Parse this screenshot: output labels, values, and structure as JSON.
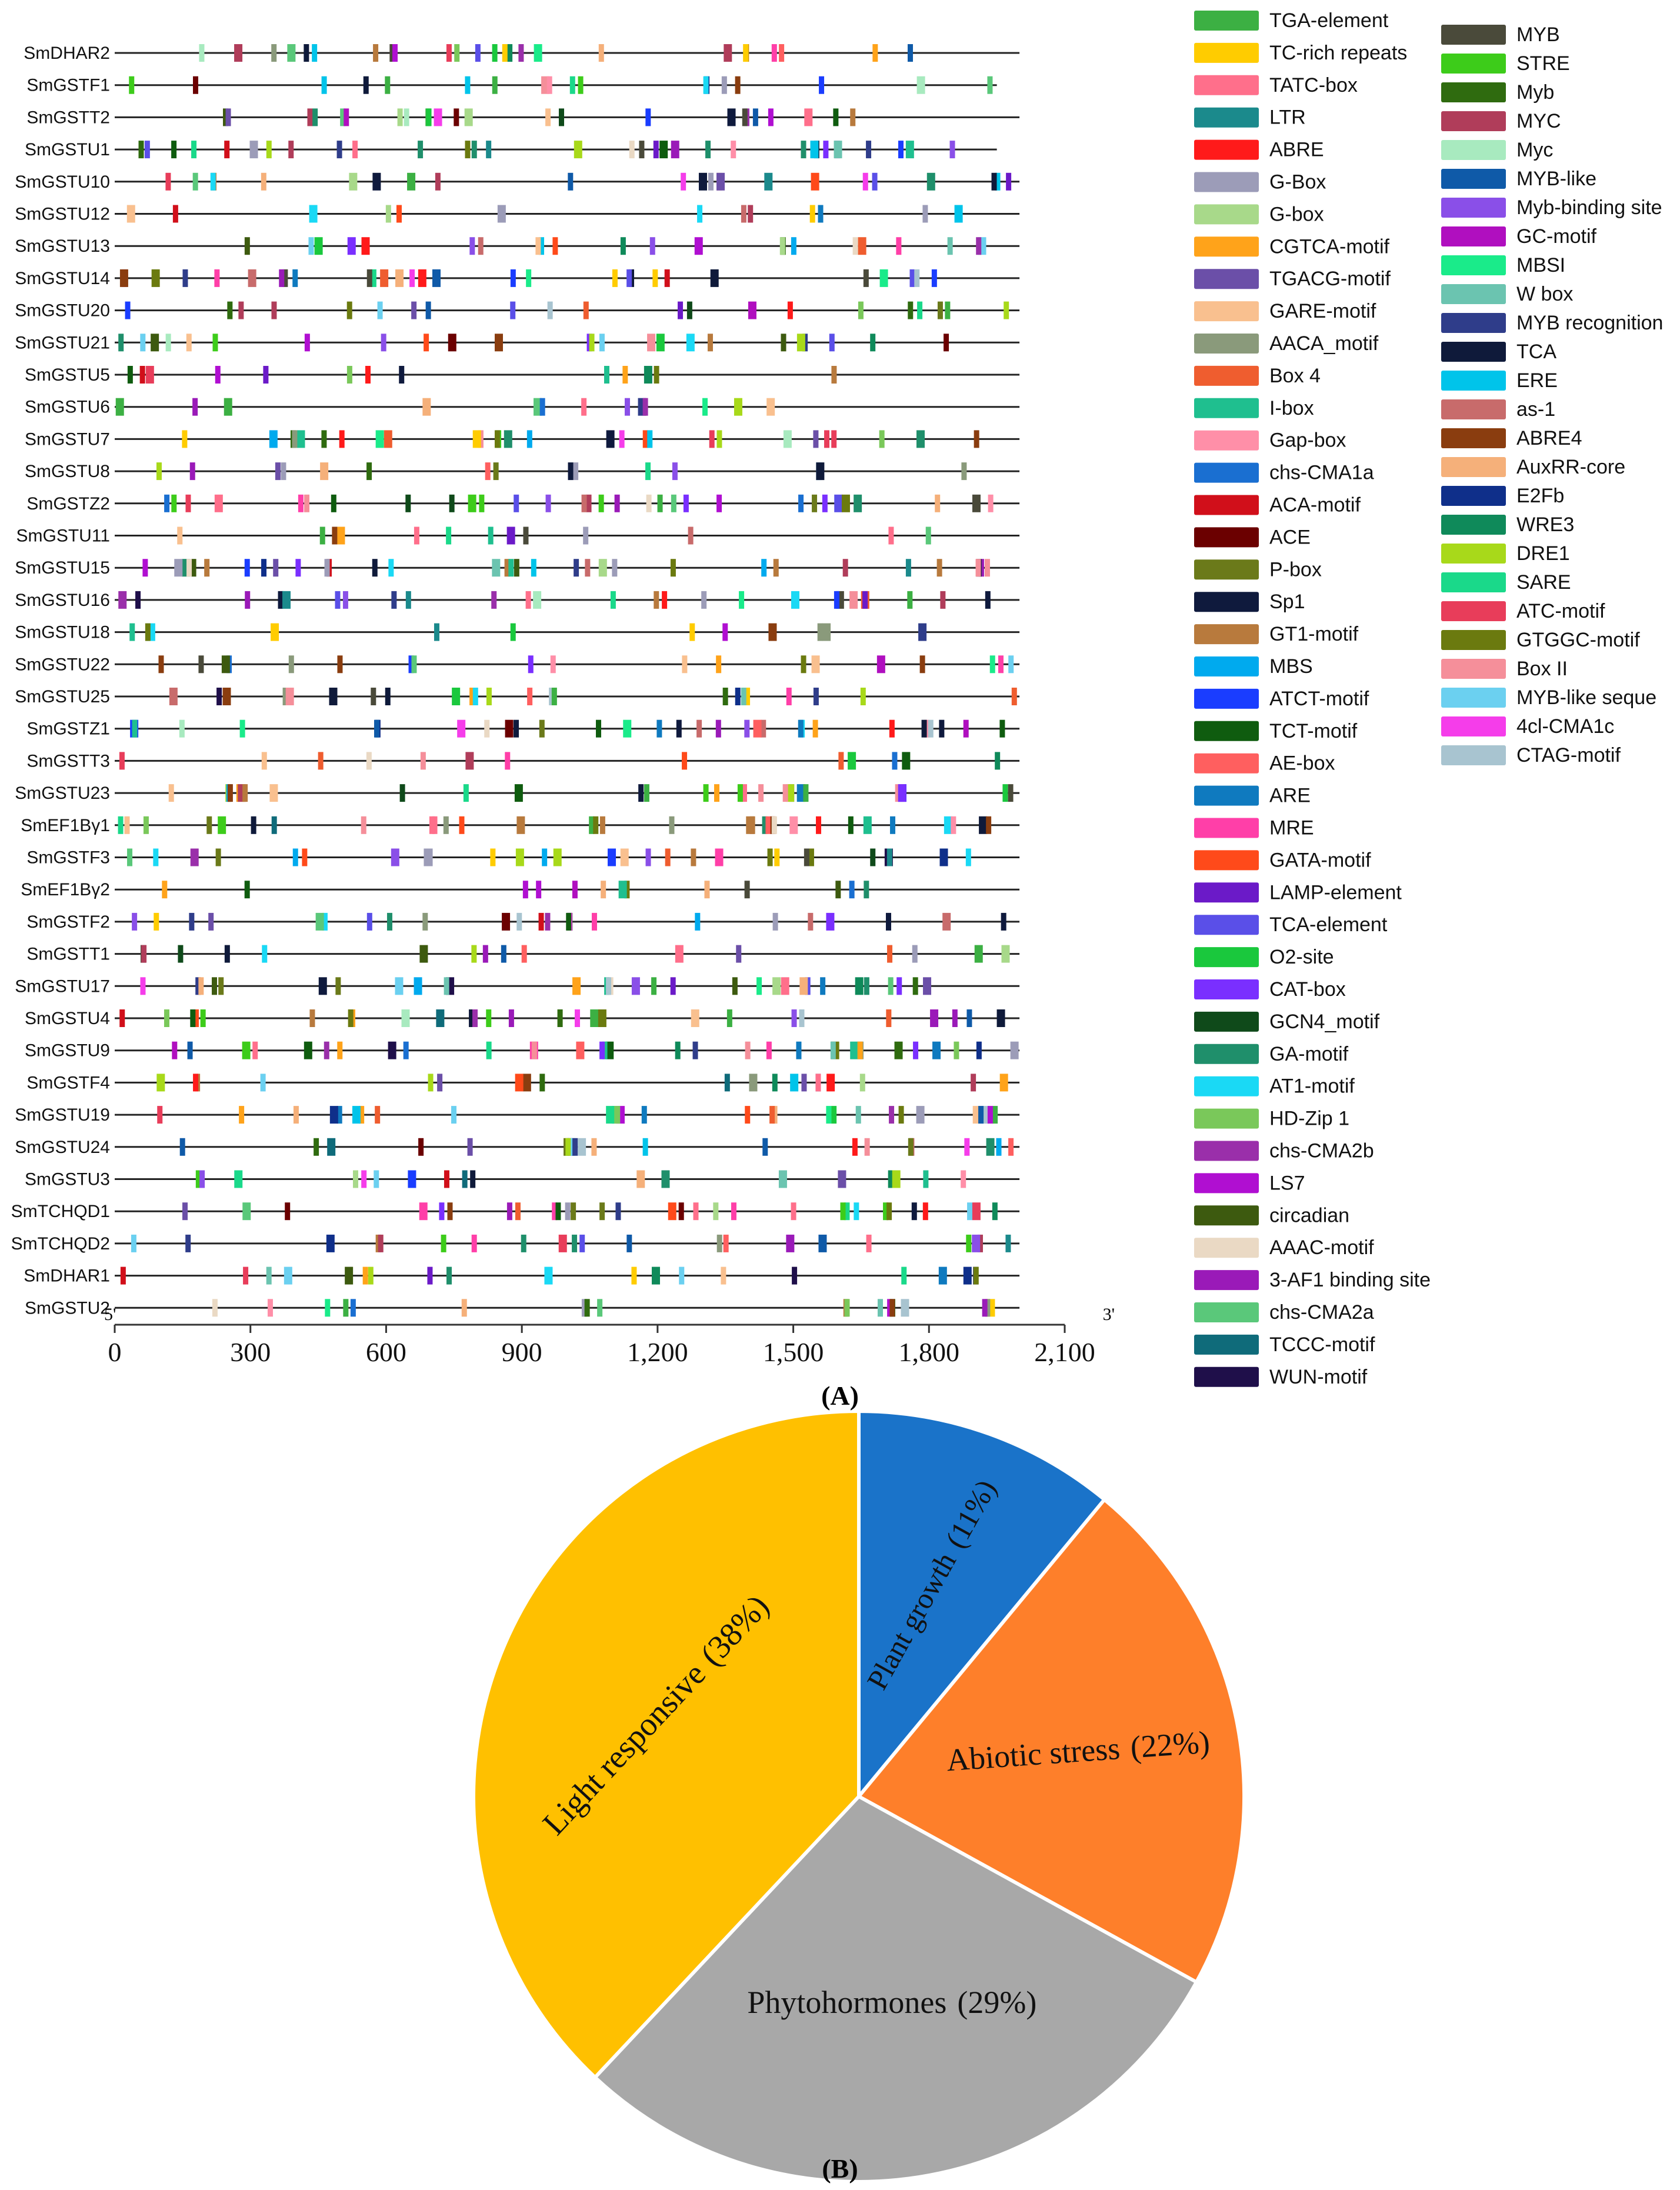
{
  "colors": {
    "line": "#222222",
    "axis": "#333333",
    "pie_edge": "#ffffff"
  },
  "chart_data": [
    {
      "type": "cis-element-map",
      "panel_label": "(A)",
      "axis_start_label": "5'",
      "axis_end_label": "3'",
      "xlim": [
        0,
        2100
      ],
      "xticks": [
        {
          "value": 0,
          "label": "0"
        },
        {
          "value": 300,
          "label": "300"
        },
        {
          "value": 600,
          "label": "600"
        },
        {
          "value": 900,
          "label": "900"
        },
        {
          "value": 1200,
          "label": "1,200"
        },
        {
          "value": 1500,
          "label": "1,500"
        },
        {
          "value": 1800,
          "label": "1,800"
        },
        {
          "value": 2100,
          "label": "2,100"
        }
      ],
      "genes": [
        {
          "name": "SmDHAR2",
          "length": 2000
        },
        {
          "name": "SmGSTF1",
          "length": 1950
        },
        {
          "name": "SmGSTT2",
          "length": 2000
        },
        {
          "name": "SmGSTU1",
          "length": 1950
        },
        {
          "name": "SmGSTU10",
          "length": 2000
        },
        {
          "name": "SmGSTU12",
          "length": 2000
        },
        {
          "name": "SmGSTU13",
          "length": 2000
        },
        {
          "name": "SmGSTU14",
          "length": 2000
        },
        {
          "name": "SmGSTU20",
          "length": 2000
        },
        {
          "name": "SmGSTU21",
          "length": 2000
        },
        {
          "name": "SmGSTU5",
          "length": 2000
        },
        {
          "name": "SmGSTU6",
          "length": 2000
        },
        {
          "name": "SmGSTU7",
          "length": 2000
        },
        {
          "name": "SmGSTU8",
          "length": 2000
        },
        {
          "name": "SmGSTZ2",
          "length": 2000
        },
        {
          "name": "SmGSTU11",
          "length": 2000
        },
        {
          "name": "SmGSTU15",
          "length": 2000
        },
        {
          "name": "SmGSTU16",
          "length": 2000
        },
        {
          "name": "SmGSTU18",
          "length": 2000
        },
        {
          "name": "SmGSTU22",
          "length": 2000
        },
        {
          "name": "SmGSTU25",
          "length": 2000
        },
        {
          "name": "SmGSTZ1",
          "length": 2000
        },
        {
          "name": "SmGSTT3",
          "length": 2000
        },
        {
          "name": "SmGSTU23",
          "length": 2000
        },
        {
          "name": "SmEF1Bγ1",
          "length": 2000
        },
        {
          "name": "SmGSTF3",
          "length": 2000
        },
        {
          "name": "SmEF1Bγ2",
          "length": 2000
        },
        {
          "name": "SmGSTF2",
          "length": 2000
        },
        {
          "name": "SmGSTT1",
          "length": 2000
        },
        {
          "name": "SmGSTU17",
          "length": 2000
        },
        {
          "name": "SmGSTU4",
          "length": 2000
        },
        {
          "name": "SmGSTU9",
          "length": 2000
        },
        {
          "name": "SmGSTF4",
          "length": 2000
        },
        {
          "name": "SmGSTU19",
          "length": 2000
        },
        {
          "name": "SmGSTU24",
          "length": 2000
        },
        {
          "name": "SmGSTU3",
          "length": 2000
        },
        {
          "name": "SmTCHQD1",
          "length": 2000
        },
        {
          "name": "SmTCHQD2",
          "length": 2000
        },
        {
          "name": "SmDHAR1",
          "length": 2000
        },
        {
          "name": "SmGSTU2",
          "length": 2000
        }
      ],
      "legend": [
        {
          "name": "TGA-element",
          "color": "#3cb043"
        },
        {
          "name": "TC-rich repeats",
          "color": "#ffcc00"
        },
        {
          "name": "TATC-box",
          "color": "#ff6f8b"
        },
        {
          "name": "LTR",
          "color": "#1b8a8c"
        },
        {
          "name": "ABRE",
          "color": "#ff1a1a"
        },
        {
          "name": "G-Box",
          "color": "#9c9cb8"
        },
        {
          "name": "G-box",
          "color": "#a8d98a"
        },
        {
          "name": "CGTCA-motif",
          "color": "#ffa31a"
        },
        {
          "name": "TGACG-motif",
          "color": "#6b4fa8"
        },
        {
          "name": "GARE-motif",
          "color": "#f9c08f"
        },
        {
          "name": "AACA_motif",
          "color": "#8a9a7b"
        },
        {
          "name": "Box 4",
          "color": "#ef5d2f"
        },
        {
          "name": "I-box",
          "color": "#1fbf8f"
        },
        {
          "name": "Gap-box",
          "color": "#ff8fa8"
        },
        {
          "name": "chs-CMA1a",
          "color": "#1a6fd1"
        },
        {
          "name": "ACA-motif",
          "color": "#d10f1a"
        },
        {
          "name": "ACE",
          "color": "#6b0000"
        },
        {
          "name": "P-box",
          "color": "#6b7a1a"
        },
        {
          "name": "Sp1",
          "color": "#0f1a3d"
        },
        {
          "name": "GT1-motif",
          "color": "#b87a3d"
        },
        {
          "name": "MBS",
          "color": "#00aaee"
        },
        {
          "name": "ATCT-motif",
          "color": "#1a3dff"
        },
        {
          "name": "TCT-motif",
          "color": "#0f5c0f"
        },
        {
          "name": "AE-box",
          "color": "#ff5f5f"
        },
        {
          "name": "ARE",
          "color": "#0f7abf"
        },
        {
          "name": "MRE",
          "color": "#ff3fa8"
        },
        {
          "name": "GATA-motif",
          "color": "#ff4a1a"
        },
        {
          "name": "LAMP-element",
          "color": "#6b1ac8"
        },
        {
          "name": "TCA-element",
          "color": "#5a4fe8"
        },
        {
          "name": "O2-site",
          "color": "#1ac83d"
        },
        {
          "name": "CAT-box",
          "color": "#7a2fff"
        },
        {
          "name": "GCN4_motif",
          "color": "#0f4a1a"
        },
        {
          "name": "GA-motif",
          "color": "#1f8f6b"
        },
        {
          "name": "AT1-motif",
          "color": "#1ad9f5"
        },
        {
          "name": "HD-Zip 1",
          "color": "#7ac85a"
        },
        {
          "name": "chs-CMA2b",
          "color": "#9a2faa"
        },
        {
          "name": "LS7",
          "color": "#b00fd1"
        },
        {
          "name": "circadian",
          "color": "#3d5a0f"
        },
        {
          "name": "AAAC-motif",
          "color": "#ead9c4"
        },
        {
          "name": "3-AF1 binding site",
          "color": "#9a1ab8"
        },
        {
          "name": "chs-CMA2a",
          "color": "#5ac87a"
        },
        {
          "name": "TCCC-motif",
          "color": "#0f6b7a"
        },
        {
          "name": "WUN-motif",
          "color": "#1f0f4a"
        },
        {
          "name": "MYB",
          "color": "#4a4a3a"
        },
        {
          "name": "STRE",
          "color": "#3dcc1a"
        },
        {
          "name": "Myb",
          "color": "#2f6b0f"
        },
        {
          "name": "MYC",
          "color": "#b03d5a"
        },
        {
          "name": "Myc",
          "color": "#a8eabf"
        },
        {
          "name": "MYB-like",
          "color": "#0f5aa8"
        },
        {
          "name": "Myb-binding site",
          "color": "#8a4fe8"
        },
        {
          "name": "GC-motif",
          "color": "#b00fbf"
        },
        {
          "name": "MBSI",
          "color": "#1aeb8a"
        },
        {
          "name": "W box",
          "color": "#6bc4b0"
        },
        {
          "name": "MYB recognition",
          "color": "#2f3d8a"
        },
        {
          "name": "TCA",
          "color": "#0f1a3a"
        },
        {
          "name": "ERE",
          "color": "#00c4ea"
        },
        {
          "name": "as-1",
          "color": "#c86b6b"
        },
        {
          "name": "ABRE4",
          "color": "#8a3d0f"
        },
        {
          "name": "AuxRR-core",
          "color": "#f5b07a"
        },
        {
          "name": "E2Fb",
          "color": "#0f2f8a"
        },
        {
          "name": "WRE3",
          "color": "#0f8a5a"
        },
        {
          "name": "DRE1",
          "color": "#a8d91a"
        },
        {
          "name": "SARE",
          "color": "#1ad98a"
        },
        {
          "name": "ATC-motif",
          "color": "#e83d5a"
        },
        {
          "name": "GTGGC-motif",
          "color": "#6b7a0f"
        },
        {
          "name": "Box II",
          "color": "#f58f9a"
        },
        {
          "name": "MYB-like seque",
          "color": "#6bd0f0"
        },
        {
          "name": "4cl-CMA1c",
          "color": "#f53dea"
        },
        {
          "name": "CTAG-motif",
          "color": "#a8c4d0"
        }
      ]
    },
    {
      "type": "pie",
      "panel_label": "(B)",
      "slices": [
        {
          "label": "Plant growth",
          "percent": "(11%)",
          "value": 11,
          "color": "#1a73c9"
        },
        {
          "label": "Abiotic stress",
          "percent": "(22%)",
          "value": 22,
          "color": "#fe7f2a"
        },
        {
          "label": "Phytohormones",
          "percent": "(29%)",
          "value": 29,
          "color": "#a8a8a8"
        },
        {
          "label": "Light responsive",
          "percent": "(38%)",
          "value": 38,
          "color": "#ffc000"
        }
      ]
    }
  ]
}
